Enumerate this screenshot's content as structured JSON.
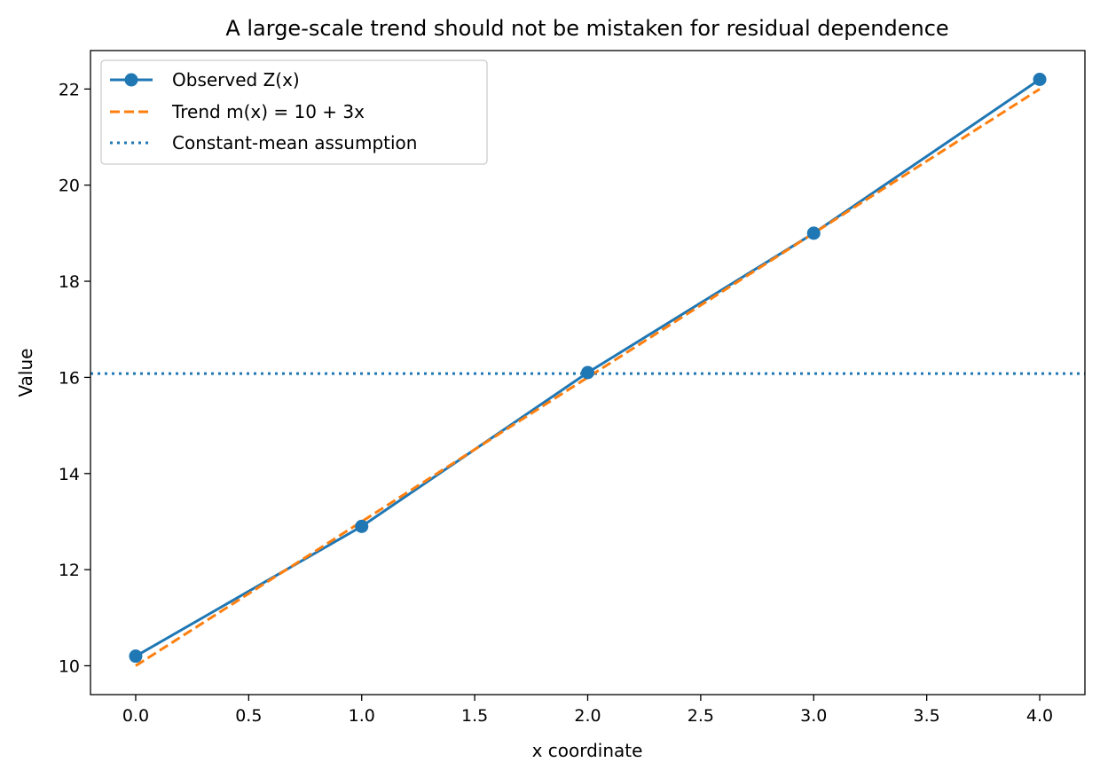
{
  "chart_data": {
    "type": "line",
    "title": "A large-scale trend should not be mistaken for residual dependence",
    "xlabel": "x coordinate",
    "ylabel": "Value",
    "xlim": [
      -0.2,
      4.2
    ],
    "ylim": [
      9.4,
      22.8
    ],
    "xticks": [
      0.0,
      0.5,
      1.0,
      1.5,
      2.0,
      2.5,
      3.0,
      3.5,
      4.0
    ],
    "xtick_labels": [
      "0.0",
      "0.5",
      "1.0",
      "1.5",
      "2.0",
      "2.5",
      "3.0",
      "3.5",
      "4.0"
    ],
    "yticks": [
      10,
      12,
      14,
      16,
      18,
      20,
      22
    ],
    "ytick_labels": [
      "10",
      "12",
      "14",
      "16",
      "18",
      "20",
      "22"
    ],
    "grid": false,
    "legend_position": "top-left",
    "series": [
      {
        "name": "Observed Z(x)",
        "style": "solid-with-markers",
        "color": "#1f77b4",
        "x": [
          0,
          1,
          2,
          3,
          4
        ],
        "y": [
          10.2,
          12.9,
          16.1,
          19.0,
          22.2
        ]
      },
      {
        "name": "Trend m(x) = 10 + 3x",
        "style": "dashed",
        "color": "#ff7f0e",
        "x": [
          0,
          4
        ],
        "y": [
          10,
          22
        ]
      },
      {
        "name": "Constant-mean assumption",
        "style": "dotted-horizontal",
        "color": "#1f77b4",
        "y": 16.08
      }
    ]
  }
}
